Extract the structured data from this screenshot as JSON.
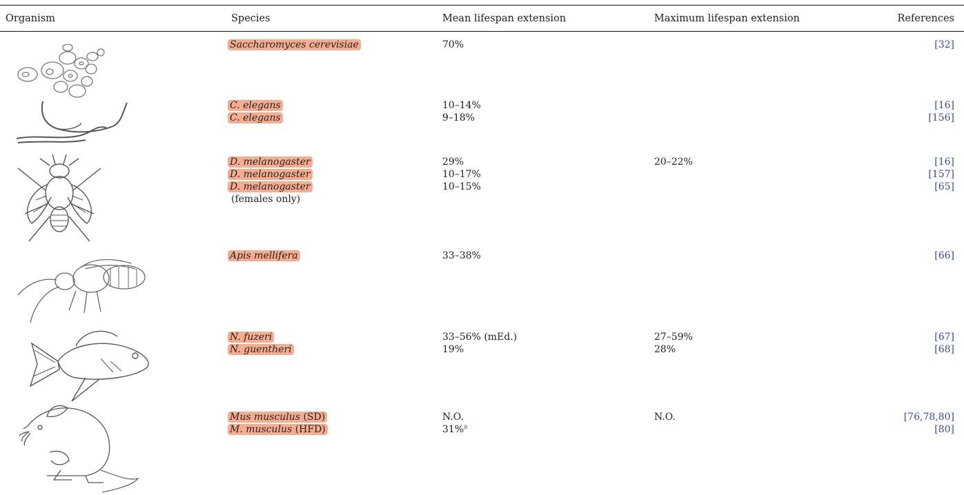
{
  "headers": {
    "organism": "Organism",
    "species": "Species",
    "mean": "Mean lifespan extension",
    "max": "Maximum lifespan extension",
    "refs": "References"
  },
  "rows": [
    {
      "icon": "yeast-cells-icon",
      "entries": [
        {
          "species": "Saccharomyces cerevisiae",
          "suffix": "",
          "mean": "70%",
          "max": "",
          "ref": "[32]"
        }
      ]
    },
    {
      "icon": "worm-icon",
      "entries": [
        {
          "species": "C. elegans",
          "suffix": "",
          "mean": "10–14%",
          "max": "",
          "ref": "[16]"
        },
        {
          "species": "C. elegans",
          "suffix": "",
          "mean": "9–18%",
          "max": "",
          "ref": "[156]"
        }
      ]
    },
    {
      "icon": "fruit-fly-icon",
      "entries": [
        {
          "species": "D. melanogaster",
          "suffix": "",
          "mean": "29%",
          "max": "20–22%",
          "ref": "[16]"
        },
        {
          "species": "D. melanogaster",
          "suffix": "",
          "mean": "10–17%",
          "max": "",
          "ref": "[157]"
        },
        {
          "species": "D. melanogaster",
          "suffix": "",
          "mean": "10–15%",
          "max": "",
          "ref": "[65]"
        }
      ],
      "note": "(females only)"
    },
    {
      "icon": "honeybee-icon",
      "entries": [
        {
          "species": "Apis mellifera",
          "suffix": "",
          "mean": "33–38%",
          "max": "",
          "ref": "[66]"
        }
      ]
    },
    {
      "icon": "fish-icon",
      "entries": [
        {
          "species": "N. fuzeri",
          "suffix": "",
          "mean": "33–56% (mEd.)",
          "max": "27–59%",
          "ref": "[67]"
        },
        {
          "species": "N. guentheri",
          "suffix": "",
          "mean": "19%",
          "max": "28%",
          "ref": "[68]"
        }
      ]
    },
    {
      "icon": "mouse-icon",
      "entries": [
        {
          "species": "Mus musculus",
          "suffix": " (SD)",
          "mean": "N.O.",
          "max": "N.O.",
          "ref": "[76,78,80]"
        },
        {
          "species": "M. musculus",
          "suffix": " (HFD)",
          "mean": "31%",
          "mean_sup": "a",
          "max": "",
          "ref": "[80]"
        }
      ]
    }
  ],
  "colors": {
    "highlight": "#f6ad8f",
    "reference": "#3a4a9c",
    "rule": "#111111"
  }
}
